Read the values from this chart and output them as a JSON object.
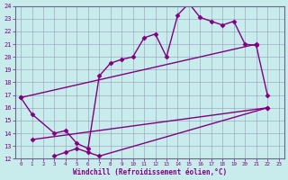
{
  "line1_x": [
    0,
    1,
    3,
    4,
    5,
    6,
    7,
    8,
    9,
    10,
    11,
    12,
    13,
    14,
    15,
    16,
    17,
    18,
    19,
    20,
    21,
    22
  ],
  "line1_y": [
    16.8,
    15.5,
    14.0,
    14.2,
    13.2,
    12.8,
    18.5,
    19.5,
    19.8,
    20.0,
    21.5,
    21.8,
    20.0,
    23.3,
    24.2,
    23.1,
    22.8,
    22.5,
    22.8,
    21.0,
    20.9,
    17.0
  ],
  "line2_x": [
    1,
    22
  ],
  "line2_y": [
    13.5,
    16.0
  ],
  "line3_x": [
    0,
    21
  ],
  "line3_y": [
    16.8,
    21.0
  ],
  "line4_x": [
    3,
    4,
    5,
    6,
    7,
    22
  ],
  "line4_y": [
    12.2,
    12.5,
    12.8,
    12.5,
    12.2,
    16.0
  ],
  "ylim": [
    12,
    24
  ],
  "xlim": [
    -0.5,
    23.5
  ],
  "yticks": [
    12,
    13,
    14,
    15,
    16,
    17,
    18,
    19,
    20,
    21,
    22,
    23,
    24
  ],
  "xticks": [
    0,
    1,
    2,
    3,
    4,
    5,
    6,
    7,
    8,
    9,
    10,
    11,
    12,
    13,
    14,
    15,
    16,
    17,
    18,
    19,
    20,
    21,
    22,
    23
  ],
  "xlabel": "Windchill (Refroidissement éolien,°C)",
  "line_color": "#800080",
  "bg_color": "#c8ecec",
  "grid_color": "#9999bb",
  "marker": "D",
  "marker_size": 2.5,
  "linewidth": 1.0
}
